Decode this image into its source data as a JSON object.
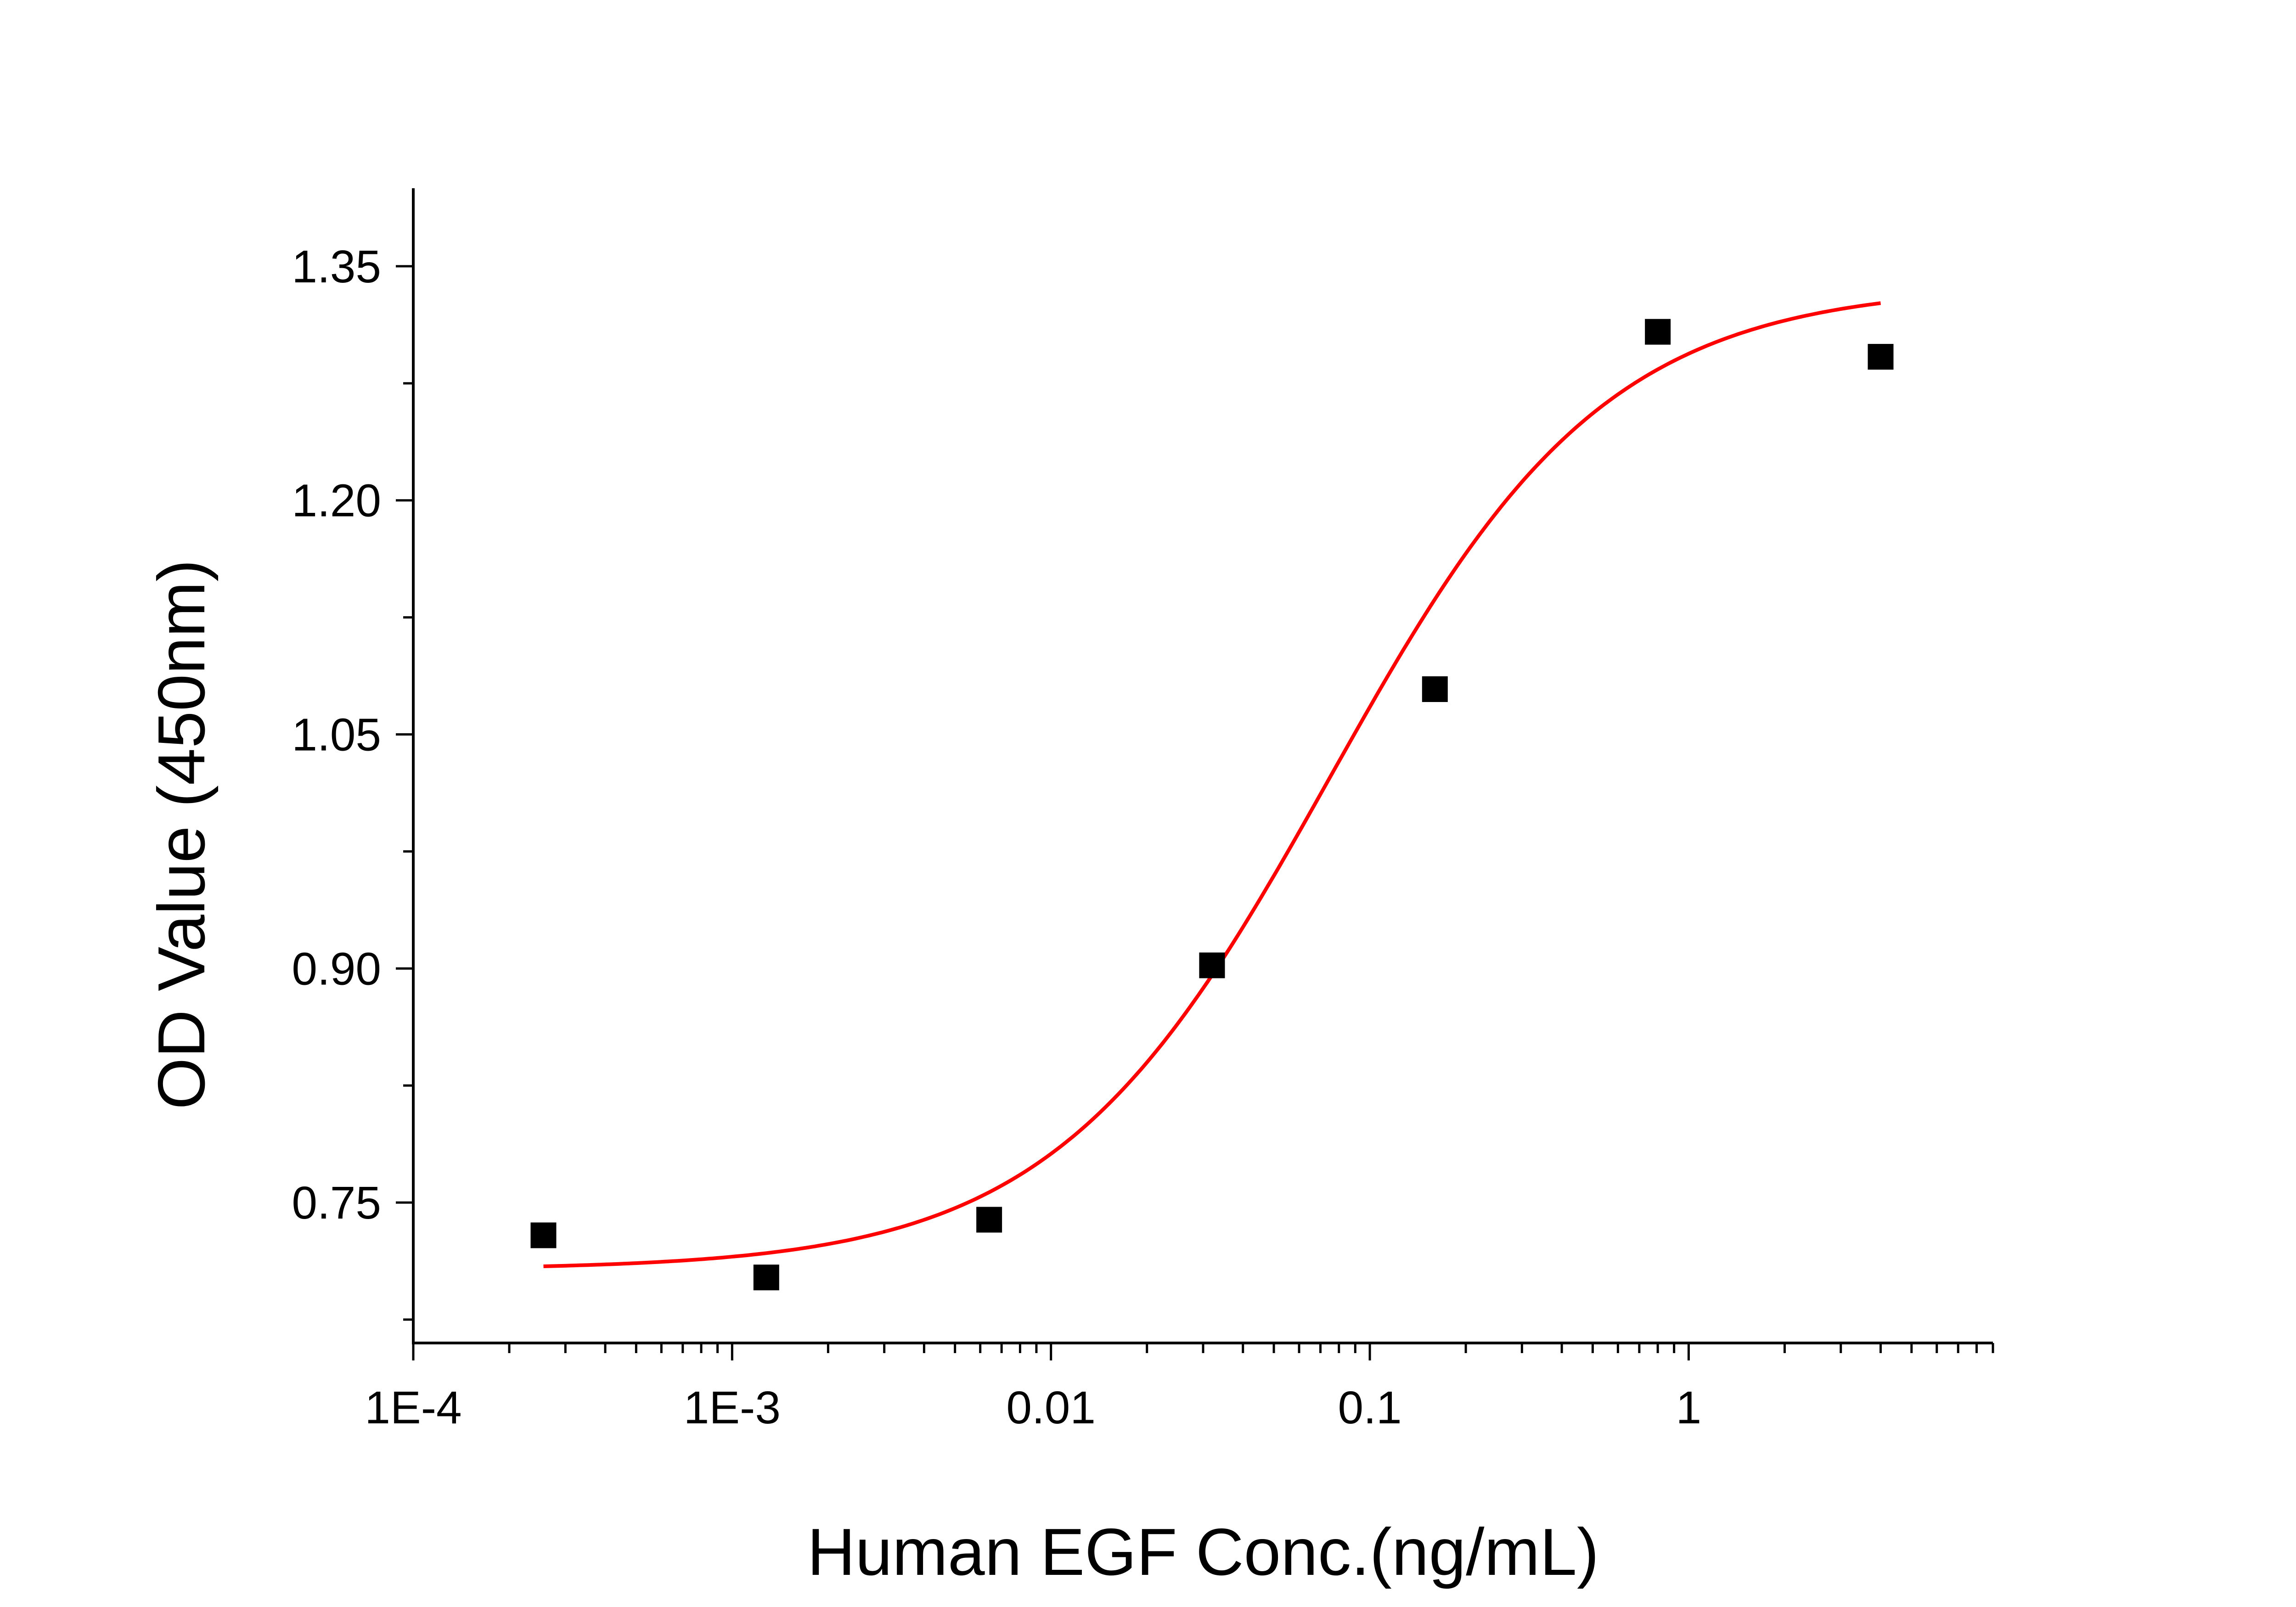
{
  "chart_data": {
    "type": "scatter",
    "title": "",
    "xlabel": "Human EGF Conc.(ng/mL)",
    "ylabel": "OD Value (450nm)",
    "x_scale": "log",
    "xlim": [
      0.0001,
      9
    ],
    "ylim": [
      0.66,
      1.4
    ],
    "x_ticks": [
      {
        "value": 0.0001,
        "label": "1E-4"
      },
      {
        "value": 0.001,
        "label": "1E-3"
      },
      {
        "value": 0.01,
        "label": "0.01"
      },
      {
        "value": 0.1,
        "label": "0.1"
      },
      {
        "value": 1,
        "label": "1"
      }
    ],
    "y_ticks": [
      {
        "value": 0.75,
        "label": "0.75"
      },
      {
        "value": 0.9,
        "label": "0.90"
      },
      {
        "value": 1.05,
        "label": "1.05"
      },
      {
        "value": 1.2,
        "label": "1.20"
      },
      {
        "value": 1.35,
        "label": "1.35"
      }
    ],
    "y_minor_ticks": [
      0.675,
      0.825,
      0.975,
      1.125,
      1.275
    ],
    "grid": false,
    "legend": "none",
    "series": [
      {
        "type": "scatter",
        "marker": "square",
        "color": "#000000",
        "x": [
          0.000256,
          0.00128,
          0.0064,
          0.032,
          0.16,
          0.8,
          4.0
        ],
        "y": [
          0.729,
          0.702,
          0.739,
          0.902,
          1.079,
          1.308,
          1.292
        ]
      },
      {
        "type": "line",
        "fit": "four-parameter logistic",
        "color": "#ff0000",
        "x_range": [
          0.000256,
          4.0
        ],
        "params": {
          "bottom": 0.707,
          "top": 1.338,
          "ec50": 0.075,
          "hill": 1.0
        }
      }
    ]
  }
}
